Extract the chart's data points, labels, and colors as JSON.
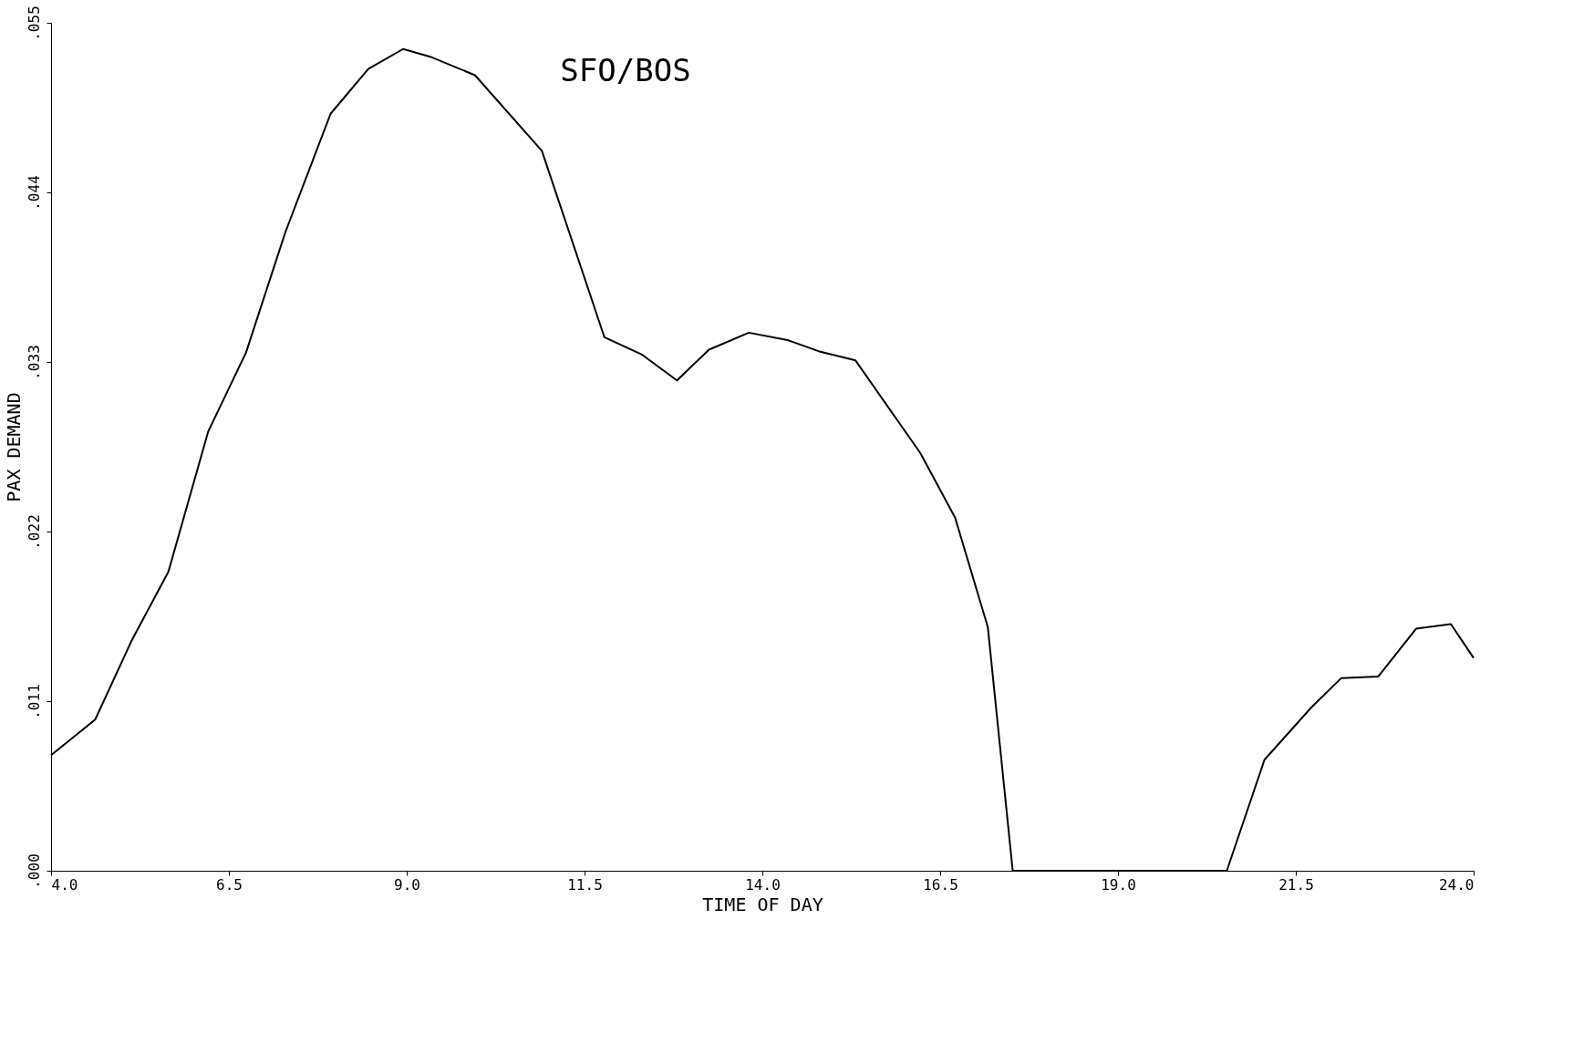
{
  "chart_data": {
    "type": "line",
    "title": "SFO/BOS",
    "xlabel": "TIME OF DAY",
    "ylabel": "PAX DEMAND",
    "xlim": [
      4.0,
      24.0
    ],
    "ylim": [
      0,
      0.055
    ],
    "xticks": [
      {
        "value": 4.0,
        "label": "4.0"
      },
      {
        "value": 6.5,
        "label": "6.5"
      },
      {
        "value": 9.0,
        "label": "9.0"
      },
      {
        "value": 11.5,
        "label": "11.5"
      },
      {
        "value": 14.0,
        "label": "14.0"
      },
      {
        "value": 16.5,
        "label": "16.5"
      },
      {
        "value": 19.0,
        "label": "19.0"
      },
      {
        "value": 21.5,
        "label": "21.5"
      },
      {
        "value": 24.0,
        "label": "24.0"
      }
    ],
    "yticks": [
      {
        "value": 0,
        "label": ".000"
      },
      {
        "value": 0.011,
        "label": ".011"
      },
      {
        "value": 0.022,
        "label": ".022"
      },
      {
        "value": 0.033,
        "label": ".033"
      },
      {
        "value": 0.044,
        "label": ".044"
      },
      {
        "value": 0.055,
        "label": ".055"
      }
    ],
    "grid": false,
    "marker": "none",
    "line_style": "solid",
    "series": [
      {
        "color": "#000000",
        "x": [
          4.0,
          4.62,
          5.13,
          5.65,
          6.21,
          6.74,
          7.3,
          7.93,
          8.46,
          8.95,
          9.33,
          9.96,
          10.9,
          11.78,
          12.3,
          12.8,
          13.25,
          13.81,
          14.37,
          14.79,
          15.31,
          16.22,
          16.71,
          17.17,
          17.52,
          20.53,
          21.06,
          21.72,
          22.14,
          22.66,
          23.19,
          23.68,
          24.0
        ],
        "values": [
          0.0075,
          0.0098,
          0.0149,
          0.0194,
          0.0285,
          0.0336,
          0.0415,
          0.0491,
          0.052,
          0.0533,
          0.0528,
          0.0516,
          0.0467,
          0.0346,
          0.0335,
          0.0318,
          0.0338,
          0.0349,
          0.0344,
          0.0337,
          0.0331,
          0.0271,
          0.0229,
          0.0158,
          0,
          0,
          0.0072,
          0.0106,
          0.0125,
          0.0126,
          0.0157,
          0.016,
          0.0138
        ]
      }
    ]
  }
}
